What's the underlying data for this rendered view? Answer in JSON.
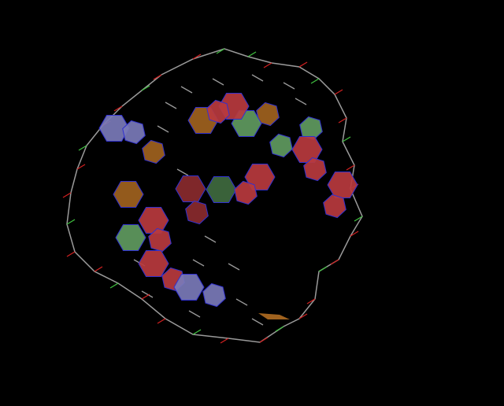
{
  "viewer": {
    "background": "#000000",
    "colors": {
      "backbone": "#9a9a9a",
      "oxygen": "#d02020",
      "phosphorus": "#40c040",
      "nitrogen": "#3030d0",
      "base_orange": "#a0621e",
      "base_green": "#5f9a5f",
      "base_red": "#b83a3e",
      "base_blue": "#7a7ab8",
      "base_darkgreen": "#3f6a3f",
      "base_darkred": "#8a2a2e"
    }
  }
}
